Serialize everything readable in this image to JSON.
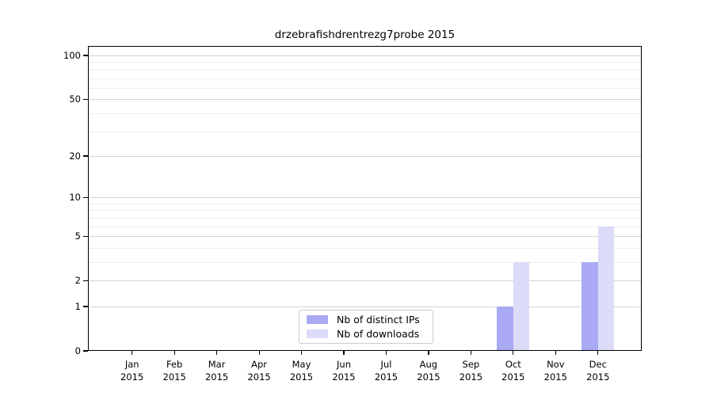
{
  "chart_data": {
    "type": "bar",
    "title": "drzebrafishdrentrezg7probe 2015",
    "x_axis": {
      "categories": [
        {
          "month": "Jan",
          "year": "2015"
        },
        {
          "month": "Feb",
          "year": "2015"
        },
        {
          "month": "Mar",
          "year": "2015"
        },
        {
          "month": "Apr",
          "year": "2015"
        },
        {
          "month": "May",
          "year": "2015"
        },
        {
          "month": "Jun",
          "year": "2015"
        },
        {
          "month": "Jul",
          "year": "2015"
        },
        {
          "month": "Aug",
          "year": "2015"
        },
        {
          "month": "Sep",
          "year": "2015"
        },
        {
          "month": "Oct",
          "year": "2015"
        },
        {
          "month": "Nov",
          "year": "2015"
        },
        {
          "month": "Dec",
          "year": "2015"
        }
      ]
    },
    "y_axis": {
      "scale": "log1p",
      "ticks": [
        0,
        1,
        2,
        5,
        10,
        20,
        50,
        100
      ],
      "minor_gridlines": [
        3,
        4,
        6,
        7,
        8,
        9,
        30,
        40,
        60,
        70,
        80,
        90
      ],
      "range": [
        0,
        100
      ]
    },
    "series": [
      {
        "name": "Nb of distinct IPs",
        "color": "#a9a9f4",
        "values": [
          0,
          0,
          0,
          0,
          0,
          0,
          0,
          0,
          0,
          1,
          0,
          3
        ]
      },
      {
        "name": "Nb of downloads",
        "color": "#dcdcf8",
        "values": [
          0,
          0,
          0,
          0,
          0,
          0,
          0,
          0,
          0,
          3,
          0,
          6
        ]
      }
    ],
    "legend": {
      "position": "lower-center"
    }
  }
}
